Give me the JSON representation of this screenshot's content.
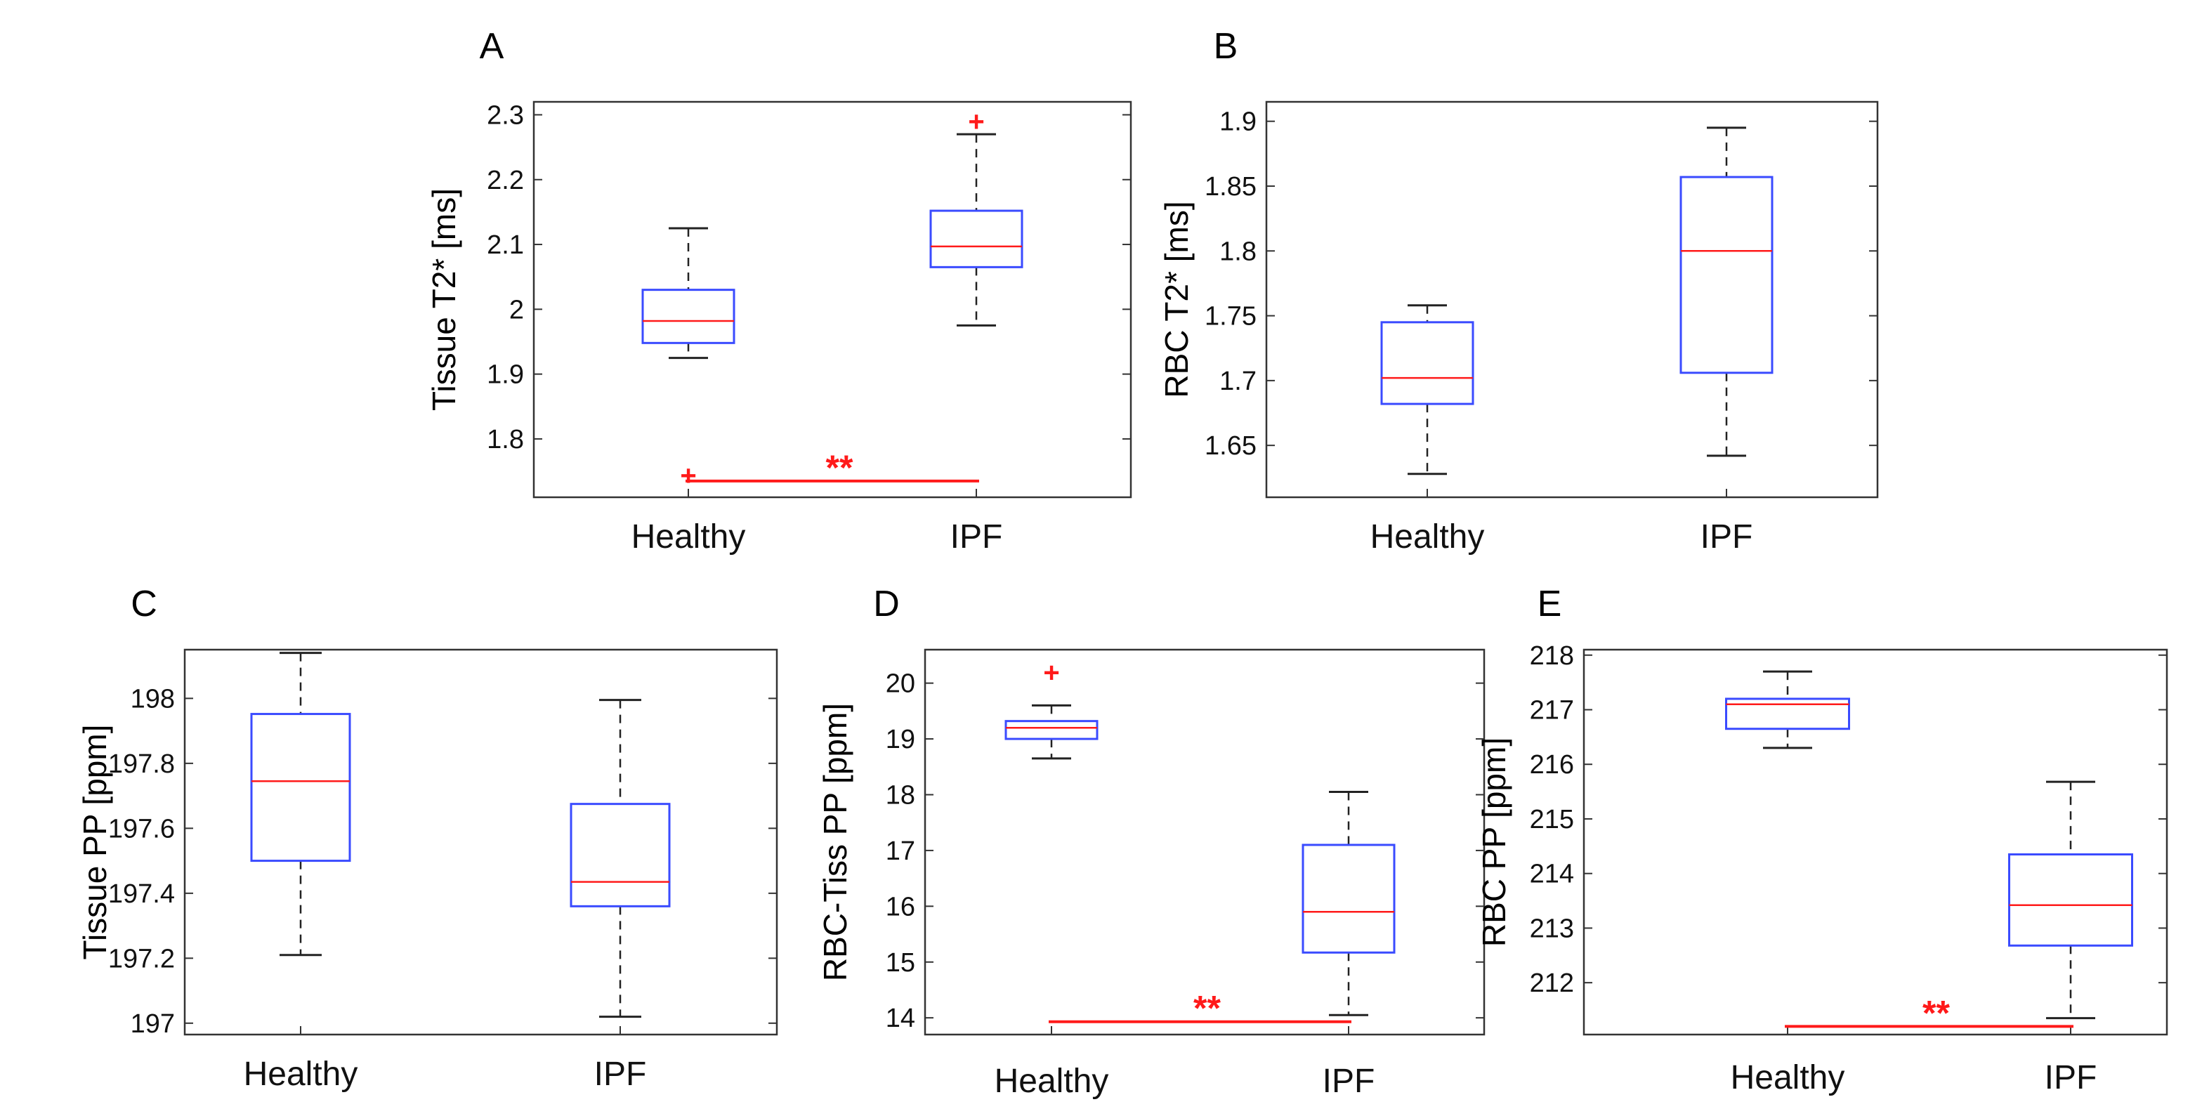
{
  "chart_data": [
    {
      "panel": "A",
      "type": "box",
      "ylabel": "Tissue T2* [ms]",
      "categories": [
        "Healthy",
        "IPF"
      ],
      "ylim": [
        1.71,
        2.32
      ],
      "yticks": [
        1.8,
        1.9,
        2,
        2.1,
        2.2,
        2.3
      ],
      "boxes": [
        {
          "name": "Healthy",
          "whisker_low": 1.925,
          "q1": 1.948,
          "median": 1.982,
          "q3": 2.03,
          "whisker_high": 2.125
        },
        {
          "name": "IPF",
          "whisker_low": 1.975,
          "q1": 2.065,
          "median": 2.097,
          "q3": 2.152,
          "whisker_high": 2.27
        }
      ],
      "outliers": [
        {
          "category": "Healthy",
          "value": 1.744
        },
        {
          "category": "IPF",
          "value": 2.29
        }
      ],
      "significance": {
        "text": "**",
        "value": 1.735
      }
    },
    {
      "panel": "B",
      "type": "box",
      "ylabel": "RBC T2* [ms]",
      "categories": [
        "Healthy",
        "IPF"
      ],
      "ylim": [
        1.61,
        1.915
      ],
      "yticks": [
        1.65,
        1.7,
        1.75,
        1.8,
        1.85,
        1.9
      ],
      "boxes": [
        {
          "name": "Healthy",
          "whisker_low": 1.628,
          "q1": 1.682,
          "median": 1.702,
          "q3": 1.745,
          "whisker_high": 1.758
        },
        {
          "name": "IPF",
          "whisker_low": 1.642,
          "q1": 1.706,
          "median": 1.8,
          "q3": 1.857,
          "whisker_high": 1.895
        }
      ],
      "outliers": []
    },
    {
      "panel": "C",
      "type": "box",
      "ylabel": "Tissue PP [ppm]",
      "categories": [
        "Healthy",
        "IPF"
      ],
      "ylim": [
        196.965,
        198.15
      ],
      "yticks": [
        197,
        197.2,
        197.4,
        197.6,
        197.8,
        198
      ],
      "boxes": [
        {
          "name": "Healthy",
          "whisker_low": 197.21,
          "q1": 197.5,
          "median": 197.745,
          "q3": 197.952,
          "whisker_high": 198.14
        },
        {
          "name": "IPF",
          "whisker_low": 197.02,
          "q1": 197.36,
          "median": 197.435,
          "q3": 197.675,
          "whisker_high": 197.995
        }
      ],
      "outliers": []
    },
    {
      "panel": "D",
      "type": "box",
      "ylabel": "RBC-Tiss PP [ppm]",
      "categories": [
        "Healthy",
        "IPF"
      ],
      "ylim": [
        13.7,
        20.6
      ],
      "yticks": [
        14,
        15,
        16,
        17,
        18,
        19,
        20
      ],
      "boxes": [
        {
          "name": "Healthy",
          "whisker_low": 18.65,
          "q1": 19.0,
          "median": 19.2,
          "q3": 19.32,
          "whisker_high": 19.6
        },
        {
          "name": "IPF",
          "whisker_low": 14.05,
          "q1": 15.17,
          "median": 15.9,
          "q3": 17.1,
          "whisker_high": 18.05
        }
      ],
      "outliers": [
        {
          "category": "Healthy",
          "value": 20.2
        }
      ],
      "significance": {
        "text": "**",
        "value": 13.93
      }
    },
    {
      "panel": "E",
      "type": "box",
      "ylabel": "RBC PP [ppm]",
      "categories": [
        "Healthy",
        "IPF"
      ],
      "ylim": [
        211.05,
        218.1
      ],
      "yticks": [
        212,
        213,
        214,
        215,
        216,
        217,
        218
      ],
      "boxes": [
        {
          "name": "Healthy",
          "whisker_low": 216.3,
          "q1": 216.65,
          "median": 217.1,
          "q3": 217.2,
          "whisker_high": 217.7
        },
        {
          "name": "IPF",
          "whisker_low": 211.35,
          "q1": 212.68,
          "median": 213.42,
          "q3": 214.35,
          "whisker_high": 215.68
        }
      ],
      "outliers": [],
      "significance": {
        "text": "**",
        "value": 211.2
      }
    }
  ]
}
